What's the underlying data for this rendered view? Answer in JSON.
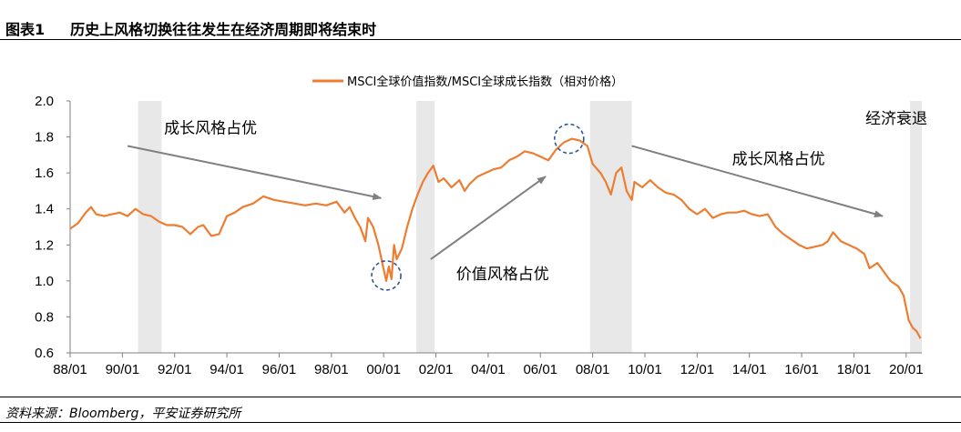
{
  "header": {
    "figure_label": "图表1",
    "title": "历史上风格切换往往发生在经济周期即将结束时"
  },
  "footer": {
    "source": "资料来源：Bloomberg，平安证券研究所"
  },
  "colors": {
    "line": "#ED7D31",
    "recession": "#E8E8E8",
    "axis": "#808080",
    "annotation": "#808080",
    "circle": "#2F5597"
  },
  "chart_data": {
    "type": "line",
    "title": "",
    "legend": {
      "label": "MSCI全球价值指数/MSCI全球成长指数（相对价格）",
      "position": "top"
    },
    "ylim": [
      0.6,
      2.0
    ],
    "yticks": [
      0.6,
      0.8,
      1.0,
      1.2,
      1.4,
      1.6,
      1.8,
      2.0
    ],
    "ytick_labels": [
      "0.6",
      "0.8",
      "1.0",
      "1.2",
      "1.4",
      "1.6",
      "1.8",
      "2.0"
    ],
    "xlim": [
      1988.0,
      2020.6
    ],
    "xticks": [
      1988,
      1990,
      1992,
      1994,
      1996,
      1998,
      2000,
      2002,
      2004,
      2006,
      2008,
      2010,
      2012,
      2014,
      2016,
      2018,
      2020
    ],
    "xtick_labels": [
      "88/01",
      "90/01",
      "92/01",
      "94/01",
      "96/01",
      "98/01",
      "00/01",
      "02/01",
      "04/01",
      "06/01",
      "08/01",
      "10/01",
      "12/01",
      "14/01",
      "16/01",
      "18/01",
      "20/01"
    ],
    "grid": false,
    "recessions": [
      [
        1990.6,
        1991.5
      ],
      [
        2001.25,
        2001.95
      ],
      [
        2007.9,
        2009.5
      ],
      [
        2020.15,
        2020.6
      ]
    ],
    "series": [
      {
        "name": "MSCI全球价值指数/MSCI全球成长指数（相对价格）",
        "points": [
          [
            1988.0,
            1.29
          ],
          [
            1988.3,
            1.32
          ],
          [
            1988.6,
            1.38
          ],
          [
            1988.8,
            1.41
          ],
          [
            1989.0,
            1.37
          ],
          [
            1989.3,
            1.36
          ],
          [
            1989.6,
            1.37
          ],
          [
            1989.9,
            1.38
          ],
          [
            1990.2,
            1.36
          ],
          [
            1990.5,
            1.4
          ],
          [
            1990.8,
            1.37
          ],
          [
            1991.1,
            1.36
          ],
          [
            1991.4,
            1.33
          ],
          [
            1991.7,
            1.31
          ],
          [
            1992.0,
            1.31
          ],
          [
            1992.3,
            1.3
          ],
          [
            1992.6,
            1.26
          ],
          [
            1992.9,
            1.3
          ],
          [
            1993.1,
            1.31
          ],
          [
            1993.4,
            1.25
          ],
          [
            1993.7,
            1.26
          ],
          [
            1994.0,
            1.36
          ],
          [
            1994.3,
            1.38
          ],
          [
            1994.6,
            1.41
          ],
          [
            1995.0,
            1.43
          ],
          [
            1995.4,
            1.47
          ],
          [
            1995.8,
            1.45
          ],
          [
            1996.2,
            1.44
          ],
          [
            1996.6,
            1.43
          ],
          [
            1997.0,
            1.42
          ],
          [
            1997.4,
            1.43
          ],
          [
            1997.8,
            1.42
          ],
          [
            1998.2,
            1.44
          ],
          [
            1998.5,
            1.38
          ],
          [
            1998.7,
            1.41
          ],
          [
            1998.9,
            1.35
          ],
          [
            1999.1,
            1.3
          ],
          [
            1999.3,
            1.22
          ],
          [
            1999.4,
            1.35
          ],
          [
            1999.6,
            1.3
          ],
          [
            1999.8,
            1.2
          ],
          [
            1999.95,
            1.1
          ],
          [
            2000.1,
            1.0
          ],
          [
            2000.2,
            1.08
          ],
          [
            2000.3,
            1.01
          ],
          [
            2000.4,
            1.2
          ],
          [
            2000.5,
            1.12
          ],
          [
            2000.7,
            1.18
          ],
          [
            2000.9,
            1.3
          ],
          [
            2001.1,
            1.4
          ],
          [
            2001.3,
            1.48
          ],
          [
            2001.5,
            1.55
          ],
          [
            2001.7,
            1.6
          ],
          [
            2001.9,
            1.64
          ],
          [
            2002.1,
            1.55
          ],
          [
            2002.3,
            1.57
          ],
          [
            2002.6,
            1.52
          ],
          [
            2002.9,
            1.56
          ],
          [
            2003.1,
            1.5
          ],
          [
            2003.3,
            1.54
          ],
          [
            2003.6,
            1.58
          ],
          [
            2003.9,
            1.6
          ],
          [
            2004.2,
            1.62
          ],
          [
            2004.5,
            1.63
          ],
          [
            2004.8,
            1.67
          ],
          [
            2005.1,
            1.69
          ],
          [
            2005.4,
            1.72
          ],
          [
            2005.7,
            1.71
          ],
          [
            2006.0,
            1.69
          ],
          [
            2006.3,
            1.67
          ],
          [
            2006.6,
            1.73
          ],
          [
            2006.9,
            1.77
          ],
          [
            2007.2,
            1.79
          ],
          [
            2007.5,
            1.78
          ],
          [
            2007.8,
            1.75
          ],
          [
            2008.0,
            1.65
          ],
          [
            2008.3,
            1.6
          ],
          [
            2008.5,
            1.55
          ],
          [
            2008.7,
            1.48
          ],
          [
            2008.9,
            1.6
          ],
          [
            2009.1,
            1.63
          ],
          [
            2009.3,
            1.5
          ],
          [
            2009.5,
            1.45
          ],
          [
            2009.6,
            1.55
          ],
          [
            2009.9,
            1.52
          ],
          [
            2010.2,
            1.56
          ],
          [
            2010.5,
            1.52
          ],
          [
            2010.8,
            1.49
          ],
          [
            2011.1,
            1.48
          ],
          [
            2011.4,
            1.45
          ],
          [
            2011.7,
            1.4
          ],
          [
            2012.0,
            1.37
          ],
          [
            2012.3,
            1.4
          ],
          [
            2012.6,
            1.35
          ],
          [
            2012.9,
            1.37
          ],
          [
            2013.2,
            1.38
          ],
          [
            2013.5,
            1.38
          ],
          [
            2013.8,
            1.39
          ],
          [
            2014.1,
            1.37
          ],
          [
            2014.4,
            1.36
          ],
          [
            2014.7,
            1.37
          ],
          [
            2015.0,
            1.3
          ],
          [
            2015.3,
            1.26
          ],
          [
            2015.6,
            1.23
          ],
          [
            2015.9,
            1.2
          ],
          [
            2016.2,
            1.18
          ],
          [
            2016.5,
            1.19
          ],
          [
            2016.8,
            1.2
          ],
          [
            2017.0,
            1.22
          ],
          [
            2017.2,
            1.27
          ],
          [
            2017.5,
            1.22
          ],
          [
            2017.8,
            1.2
          ],
          [
            2018.1,
            1.18
          ],
          [
            2018.4,
            1.15
          ],
          [
            2018.6,
            1.07
          ],
          [
            2018.9,
            1.1
          ],
          [
            2019.1,
            1.06
          ],
          [
            2019.4,
            1.0
          ],
          [
            2019.7,
            0.97
          ],
          [
            2019.9,
            0.92
          ],
          [
            2020.0,
            0.85
          ],
          [
            2020.1,
            0.78
          ],
          [
            2020.25,
            0.74
          ],
          [
            2020.4,
            0.72
          ],
          [
            2020.55,
            0.68
          ]
        ]
      }
    ],
    "annotations": [
      {
        "text": "成长风格占优",
        "tail": [
          1990.2,
          1.75
        ],
        "head": [
          1999.9,
          1.46
        ]
      },
      {
        "text": "价值风格占优",
        "tail": [
          2001.8,
          1.12
        ],
        "head": [
          2006.2,
          1.58
        ]
      },
      {
        "text": "成长风格占优",
        "tail": [
          2009.5,
          1.75
        ],
        "head": [
          2019.1,
          1.36
        ]
      }
    ],
    "circles": [
      {
        "x": 2000.1,
        "y": 1.03
      },
      {
        "x": 2007.1,
        "y": 1.79
      }
    ],
    "recession_label": "经济衰退"
  }
}
